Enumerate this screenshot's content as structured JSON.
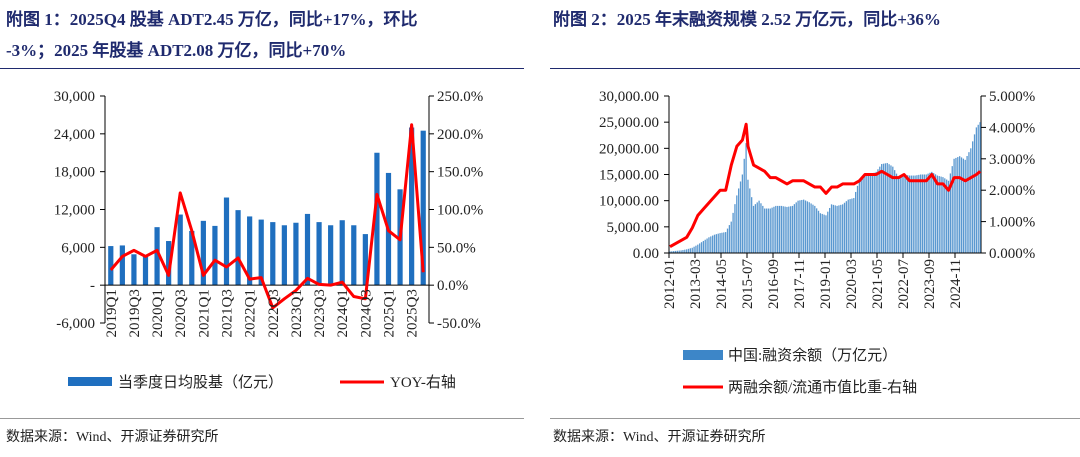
{
  "left": {
    "title_line1": "附图 1：2025Q4 股基 ADT2.45 万亿，同比+17%，环比",
    "title_line2": "-3%；2025 年股基 ADT2.08 万亿，同比+70%",
    "source": "数据来源：Wind、开源证券研究所"
  },
  "right": {
    "title": "附图 2：2025 年末融资规模 2.52 万亿元，同比+36%",
    "source": "数据来源：Wind、开源证券研究所"
  },
  "chart_data": [
    {
      "type": "bar+line",
      "categories": [
        "2019Q1",
        "2019Q2",
        "2019Q3",
        "2019Q4",
        "2020Q1",
        "2020Q2",
        "2020Q3",
        "2020Q4",
        "2021Q1",
        "2021Q2",
        "2021Q3",
        "2021Q4",
        "2022Q1",
        "2022Q2",
        "2022Q3",
        "2022Q4",
        "2023Q1",
        "2023Q2",
        "2023Q3",
        "2023Q4",
        "2024Q1",
        "2024Q2",
        "2024Q3",
        "2024Q4",
        "2025Q1",
        "2025Q2",
        "2025Q3",
        "2025Q4"
      ],
      "x_tick_labels": [
        "2019Q1",
        "2019Q3",
        "2020Q1",
        "2020Q3",
        "2021Q1",
        "2021Q3",
        "2022Q1",
        "2022Q3",
        "2023Q1",
        "2023Q3",
        "2024Q1",
        "2024Q3",
        "2025Q1",
        "2025Q3"
      ],
      "series": [
        {
          "name": "当季度日均股基（亿元）",
          "axis": "left",
          "type": "bar",
          "color": "#1f6fbf",
          "values": [
            6200,
            6300,
            4900,
            4600,
            9200,
            7000,
            11200,
            8600,
            10200,
            9400,
            13900,
            11900,
            10900,
            10400,
            10000,
            9500,
            9900,
            11300,
            10000,
            9500,
            10300,
            9500,
            8100,
            21000,
            17800,
            15200,
            25000,
            24500
          ]
        },
        {
          "name": "YOY-右轴",
          "axis": "right",
          "type": "line",
          "color": "#ff0000",
          "values": [
            20,
            38,
            46,
            38,
            46,
            13,
            122,
            72,
            13,
            33,
            24,
            36,
            8,
            10,
            -30,
            -18,
            -7,
            9,
            1,
            0,
            4,
            -15,
            -18,
            120,
            72,
            60,
            212,
            17
          ]
        }
      ],
      "y_left": {
        "range": [
          -6000,
          30000
        ],
        "ticks": [
          -6000,
          0,
          6000,
          12000,
          18000,
          24000,
          30000
        ],
        "tick_labels": [
          "-6,000",
          "-",
          "6,000",
          "12,000",
          "18,000",
          "24,000",
          "30,000"
        ]
      },
      "y_right": {
        "range": [
          -50,
          250
        ],
        "ticks": [
          -50,
          0,
          50,
          100,
          150,
          200,
          250
        ],
        "tick_labels": [
          "-50.0%",
          "0.0%",
          "50.0%",
          "100.0%",
          "150.0%",
          "200.0%",
          "250.0%"
        ]
      },
      "legend": "bottom"
    },
    {
      "type": "bar+line",
      "x_tick_labels": [
        "2012-01",
        "2013-03",
        "2014-05",
        "2015-07",
        "2016-09",
        "2017-11",
        "2019-01",
        "2020-03",
        "2021-05",
        "2022-07",
        "2023-09",
        "2024-11"
      ],
      "x_range": [
        "2012-01",
        "2025-12"
      ],
      "dates": [
        "2012-01",
        "2012-04",
        "2012-07",
        "2012-10",
        "2013-01",
        "2013-04",
        "2013-07",
        "2013-10",
        "2014-01",
        "2014-04",
        "2014-07",
        "2014-10",
        "2015-01",
        "2015-04",
        "2015-06",
        "2015-07",
        "2015-10",
        "2016-01",
        "2016-04",
        "2016-07",
        "2016-10",
        "2017-01",
        "2017-04",
        "2017-07",
        "2017-10",
        "2018-01",
        "2018-04",
        "2018-07",
        "2018-10",
        "2019-01",
        "2019-04",
        "2019-07",
        "2019-10",
        "2020-01",
        "2020-04",
        "2020-07",
        "2020-10",
        "2021-01",
        "2021-04",
        "2021-07",
        "2021-10",
        "2022-01",
        "2022-04",
        "2022-07",
        "2022-10",
        "2023-01",
        "2023-04",
        "2023-07",
        "2023-10",
        "2024-01",
        "2024-04",
        "2024-07",
        "2024-10",
        "2025-01",
        "2025-04",
        "2025-07",
        "2025-10",
        "2025-12"
      ],
      "series": [
        {
          "name": "中国:融资余额（万亿元）",
          "axis": "left",
          "type": "bar",
          "color": "#3d86c8",
          "values": [
            300,
            400,
            500,
            700,
            1000,
            1600,
            2300,
            3000,
            3500,
            3800,
            4000,
            6000,
            11000,
            15000,
            21000,
            14000,
            9000,
            10000,
            8500,
            8500,
            9000,
            9000,
            8800,
            9000,
            10000,
            10200,
            9700,
            9000,
            7600,
            7200,
            9300,
            9000,
            9300,
            10200,
            10500,
            14000,
            15000,
            15000,
            15500,
            17000,
            17200,
            16500,
            14500,
            15000,
            14800,
            14800,
            15000,
            15000,
            15500,
            14800,
            14500,
            13800,
            18000,
            18500,
            17800,
            20000,
            24000,
            25000
          ]
        },
        {
          "name": "两融余额/流通市值比重-右轴",
          "axis": "right",
          "type": "line",
          "color": "#ff0000",
          "values": [
            0.2,
            0.3,
            0.4,
            0.5,
            0.8,
            1.2,
            1.4,
            1.6,
            1.8,
            2.0,
            2.0,
            2.8,
            3.4,
            3.6,
            4.1,
            3.4,
            2.8,
            2.7,
            2.6,
            2.4,
            2.4,
            2.3,
            2.2,
            2.3,
            2.3,
            2.3,
            2.2,
            2.1,
            2.1,
            1.9,
            2.1,
            2.1,
            2.2,
            2.2,
            2.2,
            2.3,
            2.5,
            2.5,
            2.5,
            2.6,
            2.5,
            2.4,
            2.4,
            2.5,
            2.3,
            2.3,
            2.3,
            2.3,
            2.5,
            2.2,
            2.2,
            2.0,
            2.4,
            2.4,
            2.3,
            2.4,
            2.5,
            2.6
          ]
        }
      ],
      "y_left": {
        "range": [
          0,
          30000
        ],
        "ticks": [
          0,
          5000,
          10000,
          15000,
          20000,
          25000,
          30000
        ],
        "tick_labels": [
          "0.00",
          "5,000.00",
          "10,000.00",
          "15,000.00",
          "20,000.00",
          "25,000.00",
          "30,000.00"
        ]
      },
      "y_right": {
        "range": [
          0,
          5
        ],
        "ticks": [
          0,
          1,
          2,
          3,
          4,
          5
        ],
        "tick_labels": [
          "0.000%",
          "1.000%",
          "2.000%",
          "3.000%",
          "4.000%",
          "5.000%"
        ]
      },
      "legend": "bottom"
    }
  ]
}
